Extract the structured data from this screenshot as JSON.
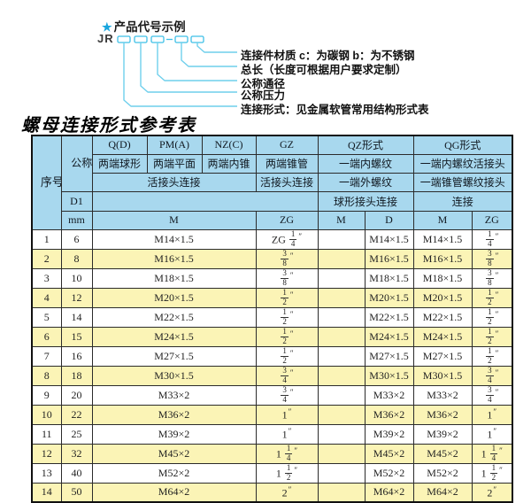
{
  "colors": {
    "header_bg": "#a8d8ee",
    "row_alt_bg": "#fbf4b6",
    "diagram_line": "#6fcfec",
    "box_stroke": "#3fc0e7",
    "star_blue": "#18a5de"
  },
  "diagram": {
    "star_icon": "★",
    "title": "产品代号示例",
    "code": "JR",
    "labels": [
      "连接件材质  c：为碳钢  b：为不锈钢",
      "总长（长度可根据用户要求定制）",
      "公称通径",
      "公称压力",
      "连接形式：见金属软管常用结构形式表"
    ]
  },
  "table": {
    "title": "螺母连接形式参考表",
    "header": {
      "seq": "序号",
      "dn": "公称通径",
      "col_q": "Q(D)",
      "col_pm": "PM(A)",
      "col_nz": "NZ(C)",
      "col_gz": "GZ",
      "col_qz": "QZ形式",
      "col_qg": "QG形式",
      "q_desc": "两端球形",
      "pm_desc": "两端平面",
      "nz_desc": "两端内锥",
      "gz_desc": "两端锥管",
      "qz_desc1": "一端内螺纹",
      "qg_desc1": "一端内螺纹活接头",
      "union_conn": "活接头连接",
      "gz_conn": "活接头连接",
      "qz_desc2": "一端外螺纹",
      "qg_desc2": "一端锥管螺纹接头",
      "d1": "D1",
      "qz_conn": "球形接头连接",
      "qg_conn": "连接",
      "mm": "mm",
      "m": "M",
      "zg": "ZG",
      "qz_m": "M",
      "qz_d": "D",
      "qg_m": "M",
      "qg_zg": "ZG"
    },
    "rows": [
      {
        "no": "1",
        "dn": "6",
        "m": "M14×1.5",
        "zg": "ZG 1/4\"",
        "qz_m": "",
        "qz_d": "M14×1.5",
        "qg_m": "M14×1.5",
        "qg_zg": "1/4\""
      },
      {
        "no": "2",
        "dn": "8",
        "m": "M16×1.5",
        "zg": "3/8\"",
        "qz_m": "",
        "qz_d": "M16×1.5",
        "qg_m": "M16×1.5",
        "qg_zg": "3/8\""
      },
      {
        "no": "3",
        "dn": "10",
        "m": "M18×1.5",
        "zg": "3/8\"",
        "qz_m": "",
        "qz_d": "M18×1.5",
        "qg_m": "M18×1.5",
        "qg_zg": "3/8\""
      },
      {
        "no": "4",
        "dn": "12",
        "m": "M20×1.5",
        "zg": "1/2\"",
        "qz_m": "",
        "qz_d": "M20×1.5",
        "qg_m": "M20×1.5",
        "qg_zg": "1/2\""
      },
      {
        "no": "5",
        "dn": "14",
        "m": "M22×1.5",
        "zg": "1/2\"",
        "qz_m": "",
        "qz_d": "M22×1.5",
        "qg_m": "M22×1.5",
        "qg_zg": "1/2\""
      },
      {
        "no": "6",
        "dn": "15",
        "m": "M24×1.5",
        "zg": "1/2\"",
        "qz_m": "",
        "qz_d": "M24×1.5",
        "qg_m": "M24×1.5",
        "qg_zg": "1/2\""
      },
      {
        "no": "7",
        "dn": "16",
        "m": "M27×1.5",
        "zg": "1/2\"",
        "qz_m": "",
        "qz_d": "M27×1.5",
        "qg_m": "M27×1.5",
        "qg_zg": "1/2\""
      },
      {
        "no": "8",
        "dn": "18",
        "m": "M30×1.5",
        "zg": "3/4\"",
        "qz_m": "",
        "qz_d": "M30×1.5",
        "qg_m": "M30×1.5",
        "qg_zg": "3/4\""
      },
      {
        "no": "9",
        "dn": "20",
        "m": "M33×2",
        "zg": "3/4\"",
        "qz_m": "",
        "qz_d": "M33×2",
        "qg_m": "M33×2",
        "qg_zg": "3/4\""
      },
      {
        "no": "10",
        "dn": "22",
        "m": "M36×2",
        "zg": "1\"",
        "qz_m": "",
        "qz_d": "M36×2",
        "qg_m": "M36×2",
        "qg_zg": "1\""
      },
      {
        "no": "11",
        "dn": "25",
        "m": "M39×2",
        "zg": "1\"",
        "qz_m": "",
        "qz_d": "M39×2",
        "qg_m": "M39×2",
        "qg_zg": "1\""
      },
      {
        "no": "12",
        "dn": "32",
        "m": "M45×2",
        "zg": "1 1/4\"",
        "qz_m": "",
        "qz_d": "M45×2",
        "qg_m": "M45×2",
        "qg_zg": "1 1/4\""
      },
      {
        "no": "13",
        "dn": "40",
        "m": "M52×2",
        "zg": "1 1/2\"",
        "qz_m": "",
        "qz_d": "M52×2",
        "qg_m": "M52×2",
        "qg_zg": "1 1/2\""
      },
      {
        "no": "14",
        "dn": "50",
        "m": "M64×2",
        "zg": "2\"",
        "qz_m": "",
        "qz_d": "M64×2",
        "qg_m": "M64×2",
        "qg_zg": "2\""
      }
    ]
  }
}
